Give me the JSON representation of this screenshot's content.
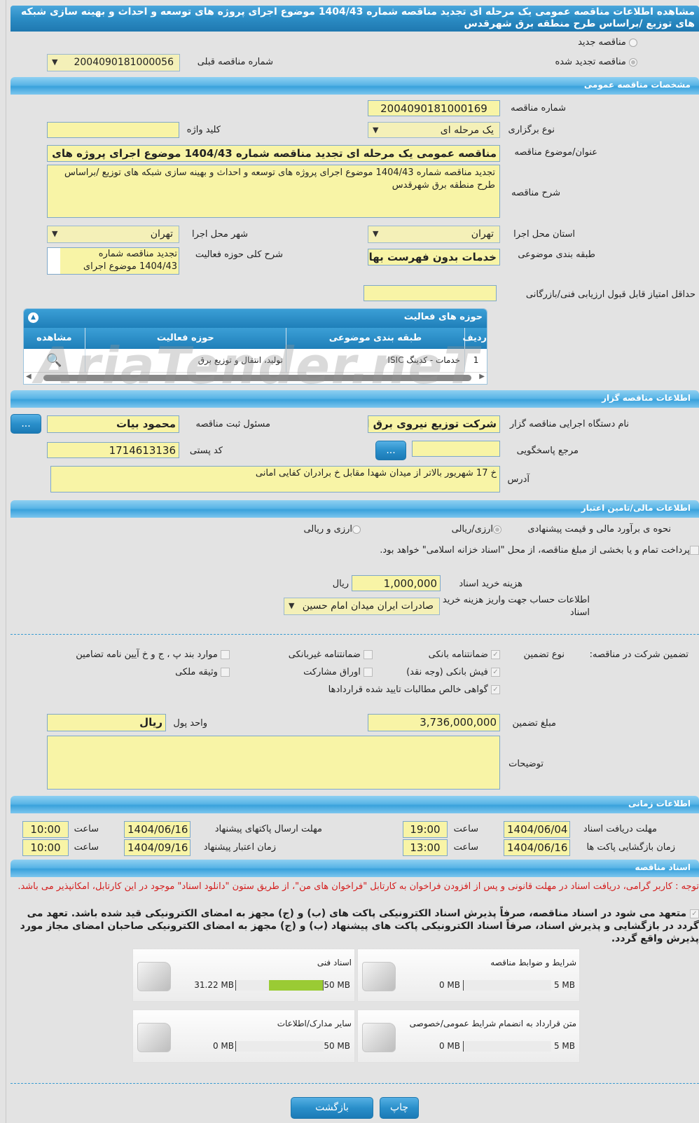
{
  "title": "مشاهده اطلاعات مناقصه عمومی یک مرحله ای تجدید مناقصه شماره 1404/43 موضوع اجرای پروژه های توسعه و احداث و بهینه سازی شبکه های توزیع /براساس طرح منطقه برق شهرقدس",
  "tender_kind": {
    "new_label": "مناقصه جدید",
    "renewed_label": "مناقصه تجدید شده",
    "selected": "renewed",
    "previous_label": "شماره مناقصه قبلی",
    "previous_value": "2004090181000056"
  },
  "general": {
    "header": "مشخصات مناقصه عمومی",
    "number_label": "شماره مناقصه",
    "number": "2004090181000169",
    "type_label": "نوع برگزاری",
    "type": "یک مرحله ای",
    "keyword_label": "کلید واژه",
    "keyword": "",
    "subject_label": "عنوان/موضوع مناقصه",
    "subject": "مناقصه عمومی یک مرحله ای تجدید مناقصه شماره 1404/43 موضوع اجرای پروژه های توسعه",
    "description_label": "شرح مناقصه",
    "description": "تجدید مناقصه شماره 1404/43 موضوع اجرای پروژه های توسعه و احداث و بهینه سازی شبکه های توزیع /براساس طرح منطقه برق شهرقدس",
    "province_label": "استان محل اجرا",
    "province": "تهران",
    "city_label": "شهر محل اجرا",
    "city": "تهران",
    "category_label": "طبقه بندی موضوعی",
    "category": "خدمات بدون فهرست بها",
    "activity_desc_label": "شرح کلی حوزه فعالیت",
    "activity_desc": "تجدید مناقصه شماره 1404/43 موضوع اجرای",
    "min_score_label": "حداقل امتیاز قابل قبول ارزیابی فنی/بازرگانی",
    "min_score": ""
  },
  "activities": {
    "title": "حوزه های فعالیت",
    "columns": [
      "ردیف",
      "طبقه بندی موضوعی",
      "حوزه فعالیت",
      "مشاهده"
    ],
    "rows": [
      {
        "index": "1",
        "category": "خدمات - کدینگ ISIC",
        "field": "تولید، انتقال و توزیع برق"
      }
    ]
  },
  "watermark": "AriaTender.neT",
  "organizer": {
    "header": "اطلاعات مناقصه گزار",
    "org_label": "نام دستگاه اجرایی مناقصه گزار",
    "org": "شرکت توزیع نیروی برق استان تهران",
    "responsible_label": "مسئول ثبت مناقصه",
    "responsible": "محمود  بیات",
    "more_button": "...",
    "ref_label": "مرجع پاسخگویی",
    "ref": "",
    "postal_label": "کد پستی",
    "postal": "1714613136",
    "address_label": "آدرس",
    "address": "خ 17 شهریور بالاتر از میدان شهدا مقابل خ برادران کفایی امانی"
  },
  "financial": {
    "header": "اطلاعات مالی/تامین اعتبار",
    "estimate_label": "نحوه ی برآورد مالی و قیمت پیشنهادی",
    "opt1": "ارزی/ریالی",
    "opt2": "ارزی و ریالی",
    "payment_text": "پرداخت تمام و یا بخشی از مبلغ مناقصه، از محل \"اسناد خزانه اسلامی\" خواهد بود.",
    "fee_label": "هزینه خرید اسناد",
    "fee": "1,000,000",
    "fee_unit": "ریال",
    "account_label": "اطلاعات حساب جهت واریز هزینه خرید اسناد",
    "account": "صادرات ایران میدان امام حسین"
  },
  "guarantee": {
    "label": "تضمین شرکت در مناقصه:",
    "type_label": "نوع تضمین",
    "options": [
      {
        "label": "ضمانتنامه بانکی",
        "checked": true
      },
      {
        "label": "ضمانتنامه غیربانکی",
        "checked": false
      },
      {
        "label": "موارد بند پ ، ج و خ آیین نامه تضامین",
        "checked": false
      },
      {
        "label": "فیش بانکی (وجه نقد)",
        "checked": true
      },
      {
        "label": "اوراق مشارکت",
        "checked": false
      },
      {
        "label": "وثیقه ملکی",
        "checked": false
      },
      {
        "label": "گواهی خالص مطالبات تایید شده قراردادها",
        "checked": true
      }
    ],
    "amount_label": "مبلغ تضمین",
    "amount": "3,736,000,000",
    "currency_label": "واحد پول",
    "currency": "ریال",
    "notes_label": "توضیحات",
    "notes": ""
  },
  "timing": {
    "header": "اطلاعات زمانی",
    "hour_label": "ساعت",
    "doc_deadline_label": "مهلت دریافت اسناد",
    "doc_deadline_date": "1404/06/04",
    "doc_deadline_time": "19:00",
    "submit_deadline_label": "مهلت ارسال پاکتهای پیشنهاد",
    "submit_deadline_date": "1404/06/16",
    "submit_deadline_time": "10:00",
    "opening_label": "زمان بازگشایی پاکت ها",
    "opening_date": "1404/06/16",
    "opening_time": "13:00",
    "validity_label": "زمان اعتبار پیشنهاد",
    "validity_date": "1404/09/16",
    "validity_time": "10:00"
  },
  "documents": {
    "header": "اسناد مناقصه",
    "note": "توجه : کاربر گرامی، دریافت اسناد در مهلت قانونی و پس از افزودن فراخوان به کارتابل \"فراخوان های من\"، از طریق ستون \"دانلود اسناد\" موجود در این کارتابل، امکانپذیر می باشد.",
    "commitment": "متعهد می شود در اسناد مناقصه، صرفاً پذیرش اسناد الکترونیکی پاکت های (ب) و (ج) مجهز به امضای الکترونیکی قید شده باشد. تعهد می گردد در بازگشایی و پذیرش اسناد، صرفاً اسناد الکترونیکی پاکت های پیشنهاد (ب) و (ج) مجهز به امضای الکترونیکی صاحبان امضای مجاز مورد پذیرش واقع گردد.",
    "files": [
      {
        "name": "شرایط و ضوابط مناقصه",
        "current": "0 MB",
        "max": "5 MB",
        "fraction": 0
      },
      {
        "name": "اسناد فنی",
        "current": "31.22 MB",
        "max": "50 MB",
        "fraction": 0.6244
      },
      {
        "name": "متن قرارداد به انضمام شرایط عمومی/خصوصی",
        "current": "0 MB",
        "max": "5 MB",
        "fraction": 0
      },
      {
        "name": "سایر مدارک/اطلاعات",
        "current": "0 MB",
        "max": "50 MB",
        "fraction": 0
      }
    ]
  },
  "buttons": {
    "back": "بازگشت",
    "print": "چاپ"
  }
}
